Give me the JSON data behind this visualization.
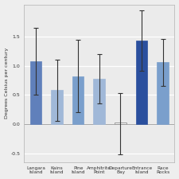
{
  "categories": [
    "Langara\nIsland",
    "Kains\nIsland",
    "Pine\nIsland",
    "Amphitrite\nPoint",
    "Departure\nBay",
    "Entrance\nIsland",
    "Race\nRocks"
  ],
  "values": [
    1.08,
    0.58,
    0.82,
    0.78,
    0.03,
    1.43,
    1.06
  ],
  "errors_upper": [
    0.57,
    0.52,
    0.62,
    0.42,
    0.5,
    0.52,
    0.4
  ],
  "errors_lower": [
    0.57,
    0.52,
    0.62,
    0.42,
    0.55,
    0.52,
    0.4
  ],
  "bar_colors": [
    "#6080bb",
    "#a0b8d8",
    "#7a9fcc",
    "#a0b8d8",
    "#f8f8f8",
    "#2a4f9e",
    "#7a9fcc"
  ],
  "bar_edge_colors": [
    "#6080bb",
    "#a0b8d8",
    "#7a9fcc",
    "#a0b8d8",
    "#aaaaaa",
    "#2a4f9e",
    "#7a9fcc"
  ],
  "ylabel": "Degrees Celsius per century",
  "ylim": [
    -0.65,
    2.05
  ],
  "yticks": [
    -0.5,
    0.0,
    0.5,
    1.0,
    1.5
  ],
  "background_color": "#eeeeee",
  "plot_bg_color": "#ebebeb",
  "grid_color": "#ffffff",
  "title": ""
}
